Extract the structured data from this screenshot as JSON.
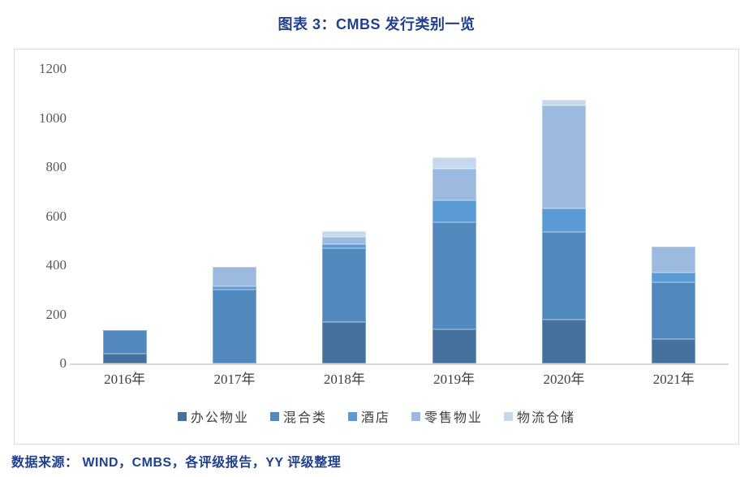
{
  "title": "图表 3：CMBS 发行类别一览",
  "footer": "数据来源： WIND，CMBS，各评级报告，YY 评级整理",
  "colors": {
    "heading_blue": "#21418E",
    "axis_gray": "#D9D9D9",
    "tick_text": "#595959",
    "label_text": "#404040"
  },
  "chart_data": {
    "type": "bar",
    "stacked": true,
    "title": "图表 3：CMBS 发行类别一览",
    "categories": [
      "2016年",
      "2017年",
      "2018年",
      "2019年",
      "2020年",
      "2021年"
    ],
    "series": [
      {
        "name": "办公物业",
        "color": "#44719E",
        "values": [
          40,
          0,
          170,
          140,
          180,
          100
        ]
      },
      {
        "name": "混合类",
        "color": "#5189BE",
        "values": [
          95,
          300,
          300,
          435,
          355,
          230
        ]
      },
      {
        "name": "酒店",
        "color": "#5B9BD5",
        "values": [
          0,
          15,
          15,
          90,
          95,
          40
        ]
      },
      {
        "name": "零售物业",
        "color": "#9CBADF",
        "values": [
          0,
          80,
          30,
          130,
          420,
          105
        ]
      },
      {
        "name": "物流仓储",
        "color": "#C6D8EC",
        "values": [
          0,
          0,
          25,
          45,
          25,
          0
        ]
      }
    ],
    "xlabel": "",
    "ylabel": "",
    "ylim": [
      0,
      1200
    ],
    "yticks": [
      0,
      200,
      400,
      600,
      800,
      1000,
      1200
    ],
    "grid": false,
    "legend_position": "bottom"
  }
}
